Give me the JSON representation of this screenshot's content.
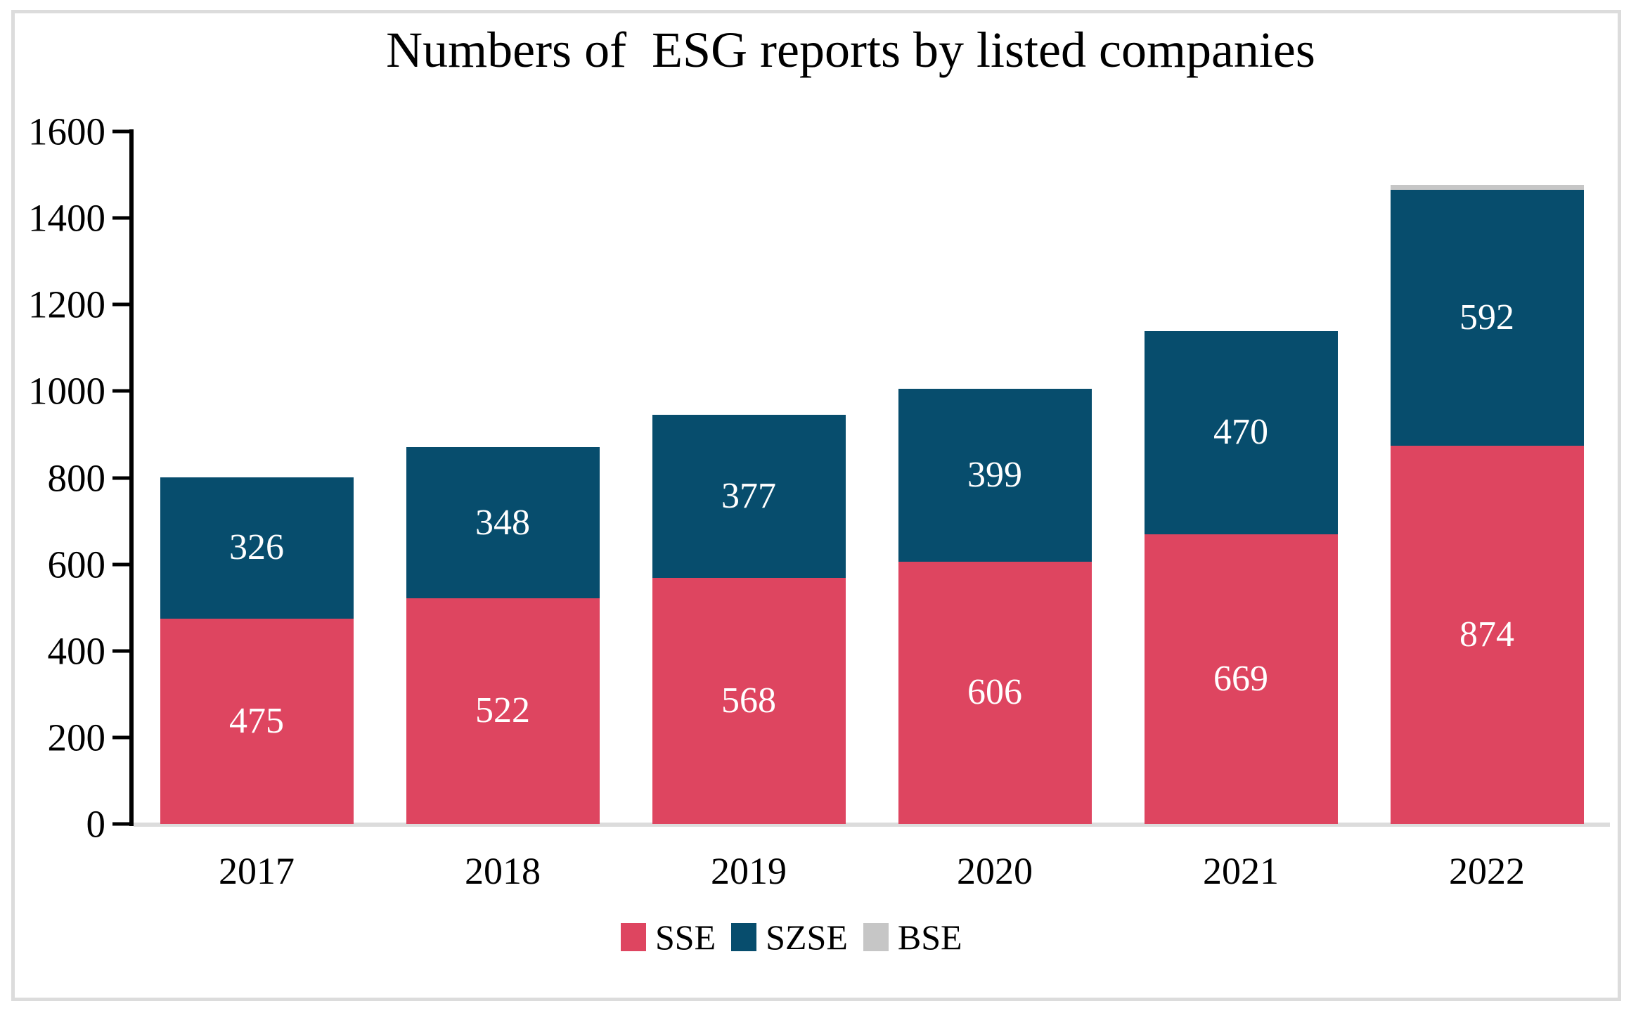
{
  "page": {
    "background": "#ffffff",
    "frame_border_color": "#dcdcdc"
  },
  "chart_data": {
    "type": "bar",
    "stacked": true,
    "title": "Numbers of  ESG reports by listed companies",
    "categories": [
      "2017",
      "2018",
      "2019",
      "2020",
      "2021",
      "2022"
    ],
    "series": [
      {
        "name": "SSE",
        "color": "#de4560",
        "label_color": "#ffffff",
        "show_value_labels": true,
        "values": [
          475,
          522,
          568,
          606,
          669,
          874
        ]
      },
      {
        "name": "SZSE",
        "color": "#074d6d",
        "label_color": "#ffffff",
        "show_value_labels": true,
        "values": [
          326,
          348,
          377,
          399,
          470,
          592
        ]
      },
      {
        "name": "BSE",
        "color": "#c6c6c6",
        "show_value_labels": false,
        "values": [
          0,
          0,
          0,
          0,
          0,
          10
        ],
        "note": "2022 sliver unlabeled in chart; value estimated from pixel height"
      }
    ],
    "xlabel": "",
    "ylabel": "",
    "ylim": [
      0,
      1600
    ],
    "yticks": [
      0,
      200,
      400,
      600,
      800,
      1000,
      1200,
      1400,
      1600
    ],
    "grid": false,
    "legend_position": "bottom",
    "axis_color": "#000000",
    "baseline_color": "#dcdcdc"
  }
}
